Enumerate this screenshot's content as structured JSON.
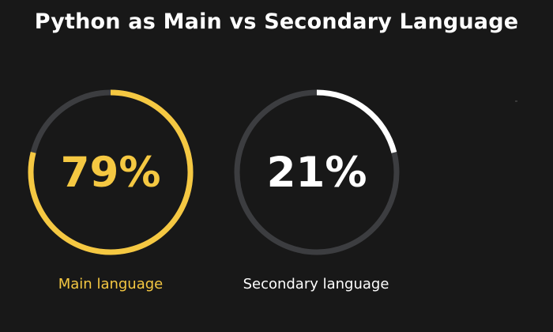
{
  "chart_data": {
    "type": "donut",
    "title": "Python as Main vs Secondary Language",
    "series": [
      {
        "name": "Main language",
        "value": 79,
        "value_label": "79%",
        "color": "#f5c842",
        "track_color": "#3c3d40"
      },
      {
        "name": "Secondary language",
        "value": 21,
        "value_label": "21%",
        "color": "#ffffff",
        "track_color": "#3c3d40"
      }
    ]
  },
  "colors": {
    "background": "#181818",
    "title": "#ffffff",
    "main_label": "#f5c842",
    "secondary_label": "#ffffff"
  }
}
